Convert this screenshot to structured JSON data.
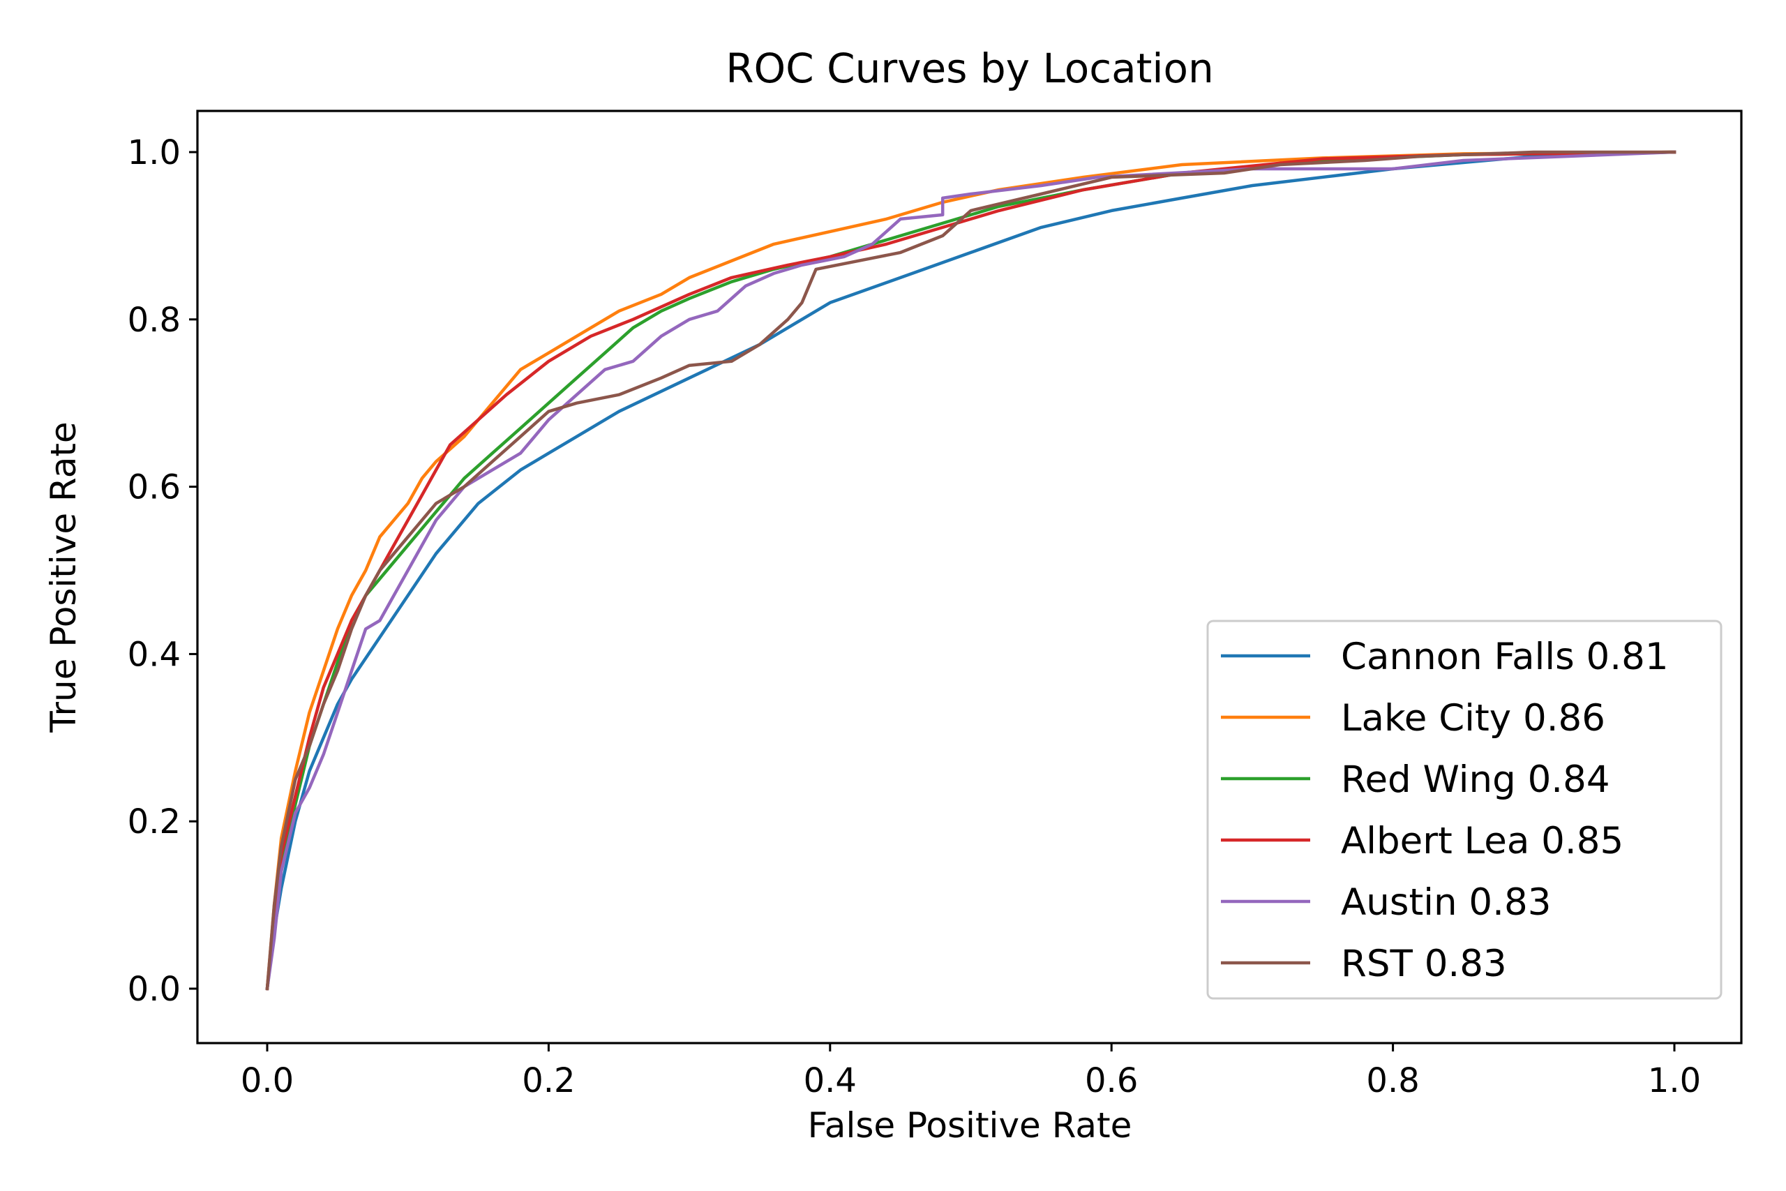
{
  "chart_data": {
    "type": "line",
    "title": "ROC Curves by Location",
    "xlabel": "False Positive Rate",
    "ylabel": "True Positive Rate",
    "xlim": [
      -0.05,
      1.05
    ],
    "ylim": [
      -0.05,
      1.05
    ],
    "xticks": [
      0.0,
      0.2,
      0.4,
      0.6,
      0.8,
      1.0
    ],
    "yticks": [
      0.0,
      0.2,
      0.4,
      0.6,
      0.8,
      1.0
    ],
    "xtick_labels": [
      "0.0",
      "0.2",
      "0.4",
      "0.6",
      "0.8",
      "1.0"
    ],
    "ytick_labels": [
      "0.0",
      "0.2",
      "0.4",
      "0.6",
      "0.8",
      "1.0"
    ],
    "grid": false,
    "legend_position": "lower-right",
    "series": [
      {
        "name": "Cannon Falls",
        "label": "Cannon Falls 0.81",
        "auc": 0.81,
        "color": "#1f77b4",
        "x": [
          0,
          0.005,
          0.01,
          0.02,
          0.03,
          0.04,
          0.05,
          0.06,
          0.08,
          0.1,
          0.12,
          0.15,
          0.18,
          0.2,
          0.25,
          0.3,
          0.35,
          0.4,
          0.45,
          0.5,
          0.55,
          0.6,
          0.65,
          0.7,
          0.8,
          0.9,
          1.0
        ],
        "y": [
          0,
          0.07,
          0.12,
          0.2,
          0.26,
          0.3,
          0.34,
          0.37,
          0.42,
          0.47,
          0.52,
          0.58,
          0.62,
          0.64,
          0.69,
          0.73,
          0.77,
          0.82,
          0.85,
          0.88,
          0.91,
          0.93,
          0.945,
          0.96,
          0.98,
          0.995,
          1.0
        ]
      },
      {
        "name": "Lake City",
        "label": "Lake City 0.86",
        "auc": 0.86,
        "color": "#ff7f0e",
        "x": [
          0,
          0.005,
          0.01,
          0.02,
          0.03,
          0.04,
          0.05,
          0.06,
          0.07,
          0.08,
          0.09,
          0.1,
          0.11,
          0.12,
          0.14,
          0.16,
          0.18,
          0.2,
          0.22,
          0.25,
          0.28,
          0.3,
          0.33,
          0.36,
          0.4,
          0.44,
          0.48,
          0.52,
          0.58,
          0.65,
          0.75,
          0.85,
          1.0
        ],
        "y": [
          0,
          0.1,
          0.18,
          0.26,
          0.33,
          0.38,
          0.43,
          0.47,
          0.5,
          0.54,
          0.56,
          0.58,
          0.61,
          0.63,
          0.66,
          0.7,
          0.74,
          0.76,
          0.78,
          0.81,
          0.83,
          0.85,
          0.87,
          0.89,
          0.905,
          0.92,
          0.94,
          0.955,
          0.97,
          0.985,
          0.993,
          0.998,
          1.0
        ]
      },
      {
        "name": "Red Wing",
        "label": "Red Wing 0.84",
        "auc": 0.84,
        "color": "#2ca02c",
        "x": [
          0,
          0.005,
          0.01,
          0.02,
          0.03,
          0.04,
          0.05,
          0.06,
          0.07,
          0.08,
          0.1,
          0.12,
          0.14,
          0.16,
          0.18,
          0.2,
          0.22,
          0.24,
          0.26,
          0.28,
          0.3,
          0.33,
          0.36,
          0.4,
          0.44,
          0.48,
          0.52,
          0.58,
          0.65,
          0.75,
          0.85,
          1.0
        ],
        "y": [
          0,
          0.08,
          0.15,
          0.22,
          0.29,
          0.34,
          0.39,
          0.44,
          0.47,
          0.49,
          0.53,
          0.57,
          0.61,
          0.64,
          0.67,
          0.7,
          0.73,
          0.76,
          0.79,
          0.81,
          0.825,
          0.845,
          0.86,
          0.875,
          0.895,
          0.915,
          0.935,
          0.955,
          0.975,
          0.99,
          0.997,
          1.0
        ]
      },
      {
        "name": "Albert Lea",
        "label": "Albert Lea 0.85",
        "auc": 0.85,
        "color": "#d62728",
        "x": [
          0,
          0.005,
          0.01,
          0.02,
          0.03,
          0.04,
          0.05,
          0.06,
          0.07,
          0.08,
          0.09,
          0.1,
          0.11,
          0.12,
          0.13,
          0.15,
          0.17,
          0.2,
          0.23,
          0.26,
          0.3,
          0.33,
          0.37,
          0.4,
          0.44,
          0.48,
          0.52,
          0.58,
          0.65,
          0.75,
          0.85,
          1.0
        ],
        "y": [
          0,
          0.08,
          0.16,
          0.23,
          0.3,
          0.36,
          0.4,
          0.44,
          0.47,
          0.5,
          0.53,
          0.56,
          0.59,
          0.62,
          0.65,
          0.68,
          0.71,
          0.75,
          0.78,
          0.8,
          0.83,
          0.85,
          0.865,
          0.875,
          0.89,
          0.91,
          0.93,
          0.955,
          0.975,
          0.992,
          0.997,
          1.0
        ]
      },
      {
        "name": "Austin",
        "label": "Austin 0.83",
        "auc": 0.83,
        "color": "#9467bd",
        "x": [
          0,
          0.005,
          0.01,
          0.02,
          0.03,
          0.04,
          0.05,
          0.06,
          0.07,
          0.08,
          0.09,
          0.1,
          0.12,
          0.14,
          0.16,
          0.18,
          0.2,
          0.22,
          0.24,
          0.26,
          0.28,
          0.3,
          0.32,
          0.34,
          0.36,
          0.38,
          0.41,
          0.43,
          0.45,
          0.48,
          0.48,
          0.5,
          0.55,
          0.59,
          0.7,
          0.8,
          0.85,
          1.0
        ],
        "y": [
          0,
          0.06,
          0.14,
          0.21,
          0.24,
          0.28,
          0.33,
          0.38,
          0.43,
          0.44,
          0.47,
          0.5,
          0.56,
          0.6,
          0.62,
          0.64,
          0.68,
          0.71,
          0.74,
          0.75,
          0.78,
          0.8,
          0.81,
          0.84,
          0.855,
          0.865,
          0.875,
          0.89,
          0.92,
          0.925,
          0.945,
          0.95,
          0.96,
          0.97,
          0.98,
          0.98,
          0.99,
          1.0
        ]
      },
      {
        "name": "RST",
        "label": "RST 0.83",
        "auc": 0.83,
        "color": "#8c564b",
        "x": [
          0,
          0.005,
          0.01,
          0.02,
          0.03,
          0.04,
          0.05,
          0.06,
          0.07,
          0.08,
          0.1,
          0.12,
          0.14,
          0.16,
          0.18,
          0.2,
          0.22,
          0.25,
          0.28,
          0.3,
          0.33,
          0.35,
          0.37,
          0.38,
          0.39,
          0.42,
          0.45,
          0.48,
          0.5,
          0.55,
          0.6,
          0.68,
          0.72,
          0.78,
          0.82,
          0.9,
          1.0
        ],
        "y": [
          0,
          0.1,
          0.17,
          0.25,
          0.29,
          0.34,
          0.38,
          0.43,
          0.47,
          0.5,
          0.54,
          0.58,
          0.6,
          0.63,
          0.66,
          0.69,
          0.7,
          0.71,
          0.73,
          0.745,
          0.75,
          0.77,
          0.8,
          0.82,
          0.86,
          0.87,
          0.88,
          0.9,
          0.93,
          0.95,
          0.97,
          0.975,
          0.985,
          0.99,
          0.995,
          1.0,
          1.0
        ]
      }
    ]
  }
}
